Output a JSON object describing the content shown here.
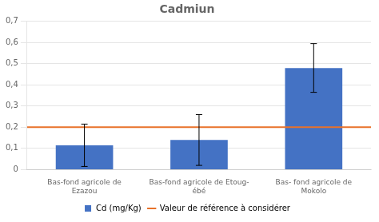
{
  "chart_data": {
    "type": "bar",
    "title": "Cadmiun",
    "categories": [
      "Bas-fond agricole de\nEzazou",
      "Bas-fond agricole de Etoug-\nébé",
      "Bas- fond agricole de\nMokolo"
    ],
    "series": [
      {
        "name": "Cd (mg/Kg)",
        "color": "#4472C4",
        "values": [
          0.115,
          0.14,
          0.48
        ],
        "errors": [
          0.1,
          0.12,
          0.115
        ]
      }
    ],
    "reference_lines": [
      {
        "name": "Valeur de référence à considérer",
        "value": 0.2,
        "color": "#E8722A"
      }
    ],
    "ylim": [
      0,
      0.7
    ],
    "yticks": [
      0,
      {
        "value": 0.1,
        "label": "0,1"
      },
      {
        "value": 0.2,
        "label": "0,2"
      },
      {
        "value": 0.3,
        "label": "0,3"
      },
      {
        "value": 0.4,
        "label": "0,4"
      },
      {
        "value": 0.5,
        "label": "0,5"
      },
      {
        "value": 0.6,
        "label": "0,6"
      },
      {
        "value": 0.7,
        "label": "0,7"
      }
    ],
    "grid": true,
    "legend": "bottom"
  }
}
